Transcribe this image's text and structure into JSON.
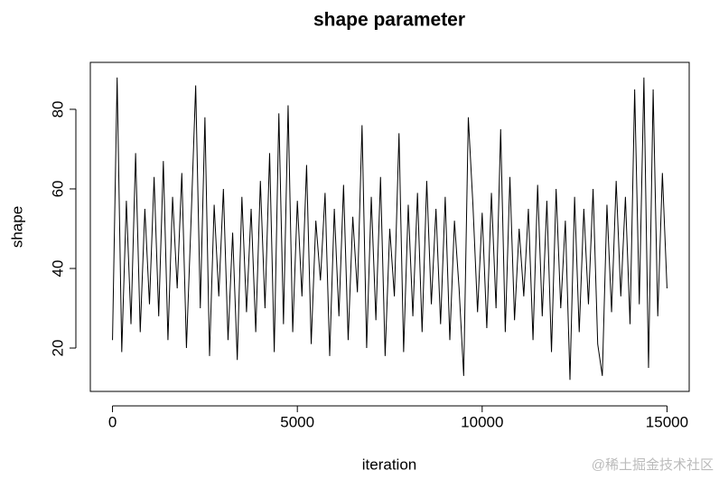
{
  "chart_data": {
    "type": "line",
    "title": "shape parameter",
    "x_label": "iteration",
    "y_label": "shape",
    "xlim": [
      -600,
      15600
    ],
    "ylim": [
      9.1,
      91.8
    ],
    "xticks": [
      0,
      5000,
      10000,
      15000
    ],
    "yticks": [
      20,
      40,
      60,
      80
    ],
    "color": "#000000",
    "x": [
      0,
      125,
      250,
      375,
      500,
      625,
      750,
      875,
      1000,
      1125,
      1250,
      1375,
      1500,
      1625,
      1750,
      1875,
      2000,
      2125,
      2250,
      2375,
      2500,
      2625,
      2750,
      2875,
      3000,
      3125,
      3250,
      3375,
      3500,
      3625,
      3750,
      3875,
      4000,
      4125,
      4250,
      4375,
      4500,
      4625,
      4750,
      4875,
      5000,
      5125,
      5250,
      5375,
      5500,
      5625,
      5750,
      5875,
      6000,
      6125,
      6250,
      6375,
      6500,
      6625,
      6750,
      6875,
      7000,
      7125,
      7250,
      7375,
      7500,
      7625,
      7750,
      7875,
      8000,
      8125,
      8250,
      8375,
      8500,
      8625,
      8750,
      8875,
      9000,
      9125,
      9250,
      9375,
      9500,
      9625,
      9750,
      9875,
      10000,
      10125,
      10250,
      10375,
      10500,
      10625,
      10750,
      10875,
      11000,
      11125,
      11250,
      11375,
      11500,
      11625,
      11750,
      11875,
      12000,
      12125,
      12250,
      12375,
      12500,
      12625,
      12750,
      12875,
      13000,
      13125,
      13250,
      13375,
      13500,
      13625,
      13750,
      13875,
      14000,
      14125,
      14250,
      14375,
      14500,
      14625,
      14750,
      14875,
      15000
    ],
    "values": [
      22,
      88,
      19,
      57,
      26,
      69,
      24,
      55,
      31,
      63,
      28,
      67,
      22,
      58,
      35,
      64,
      20,
      52,
      86,
      30,
      78,
      18,
      56,
      33,
      60,
      22,
      49,
      17,
      58,
      29,
      55,
      24,
      62,
      30,
      69,
      19,
      79,
      26,
      81,
      24,
      57,
      33,
      66,
      21,
      52,
      37,
      59,
      18,
      55,
      28,
      61,
      22,
      53,
      34,
      76,
      20,
      58,
      27,
      63,
      18,
      50,
      33,
      74,
      19,
      56,
      28,
      59,
      24,
      62,
      31,
      55,
      26,
      58,
      22,
      52,
      35,
      13,
      78,
      56,
      29,
      54,
      25,
      59,
      30,
      75,
      24,
      63,
      27,
      50,
      33,
      55,
      22,
      61,
      28,
      57,
      19,
      60,
      30,
      52,
      12,
      58,
      24,
      55,
      31,
      60,
      21,
      13,
      56,
      29,
      62,
      33,
      58,
      26,
      85,
      31,
      88,
      15,
      85,
      28,
      64,
      35
    ]
  },
  "watermark": "@稀土掘金技术社区"
}
